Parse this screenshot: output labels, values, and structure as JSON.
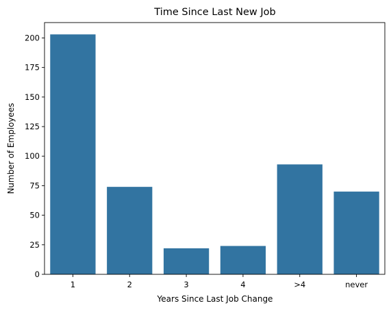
{
  "chart_data": {
    "type": "bar",
    "title": "Time Since Last New Job",
    "xlabel": "Years Since Last Job Change",
    "ylabel": "Number of Employees",
    "categories": [
      "1",
      "2",
      "3",
      "4",
      ">4",
      "never"
    ],
    "values": [
      203,
      74,
      22,
      24,
      93,
      70
    ],
    "ylim": [
      0,
      213
    ],
    "yticks": [
      0,
      25,
      50,
      75,
      100,
      125,
      150,
      175,
      200
    ],
    "grid": false,
    "bar_color": "#3274a1"
  }
}
